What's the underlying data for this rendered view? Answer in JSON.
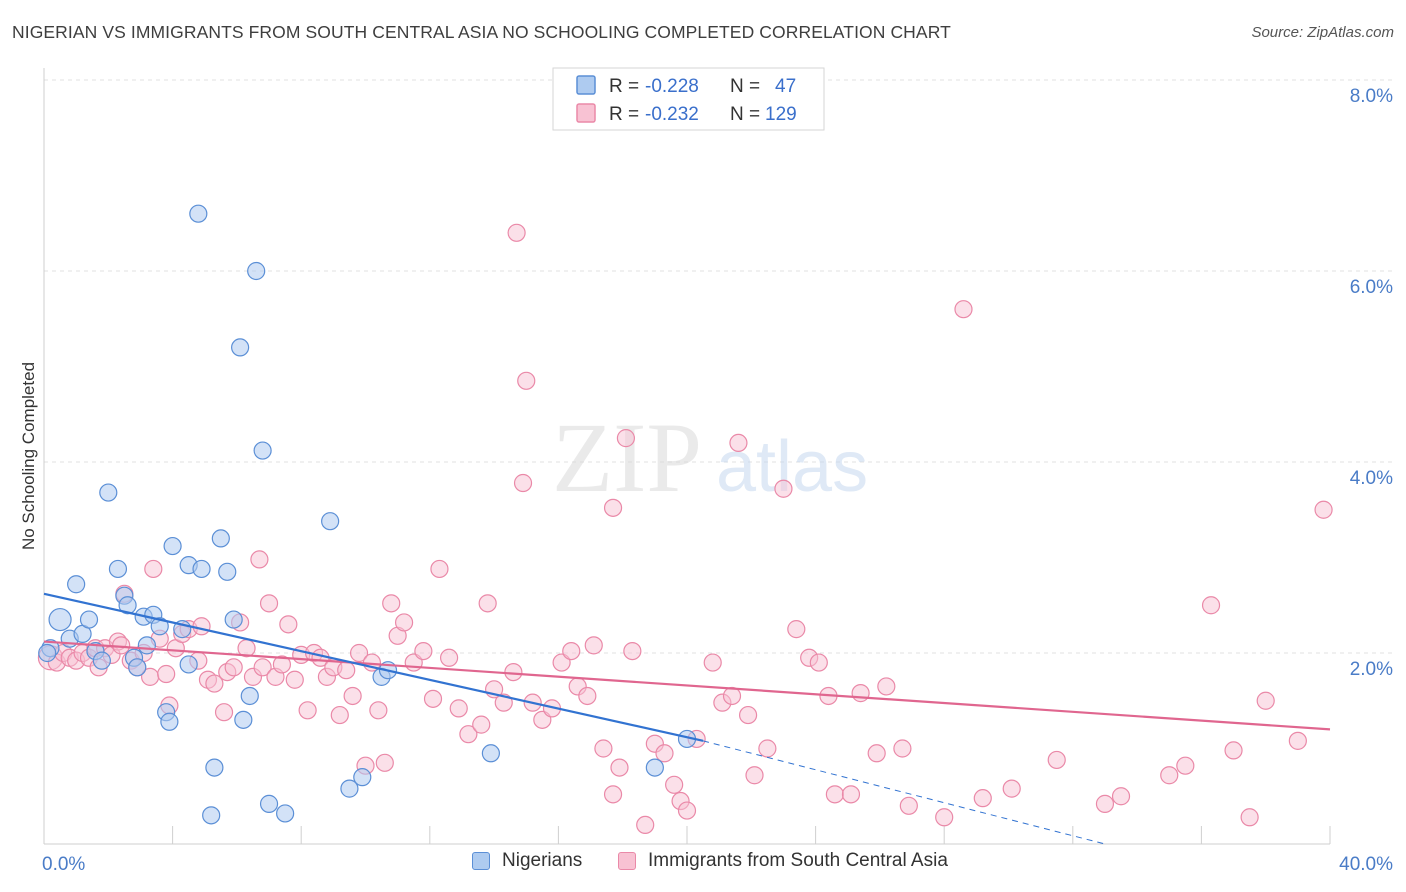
{
  "header": {
    "title": "NIGERIAN VS IMMIGRANTS FROM SOUTH CENTRAL ASIA NO SCHOOLING COMPLETED CORRELATION CHART",
    "source": "Source: ZipAtlas.com"
  },
  "watermark": {
    "zip": "ZIP",
    "atlas": "atlas"
  },
  "colors": {
    "blue": "#5b8fd6",
    "blue_fill": "#aecbf0",
    "blue_line": "#3273d1",
    "pink": "#ea89a8",
    "pink_fill": "#f8c2d3",
    "pink_line": "#e0668f",
    "axis_label": "#4a7cc7"
  },
  "legend_top": {
    "rows": [
      {
        "r_label": "R =",
        "r_value": "-0.228",
        "n_label": "N =",
        "n_value": "47"
      },
      {
        "r_label": "R =",
        "r_value": "-0.232",
        "n_label": "N =",
        "n_value": "129"
      }
    ]
  },
  "legend_bottom": {
    "items": [
      "Nigerians",
      "Immigrants from South Central Asia"
    ]
  },
  "chart_data": {
    "type": "scatter",
    "title": "NIGERIAN VS IMMIGRANTS FROM SOUTH CENTRAL ASIA NO SCHOOLING COMPLETED CORRELATION CHART",
    "xlabel": "",
    "ylabel": "No Schooling Completed",
    "xlim": [
      0,
      40
    ],
    "ylim": [
      0,
      8.0
    ],
    "x_tick_labels": [
      "0.0%",
      "40.0%"
    ],
    "y_tick_values": [
      2.0,
      4.0,
      6.0,
      8.0
    ],
    "y_tick_labels": [
      "2.0%",
      "4.0%",
      "6.0%",
      "8.0%"
    ],
    "grid": "horizontal-dashed",
    "legend_position": "top-center",
    "series": [
      {
        "name": "Nigerians",
        "r": -0.228,
        "n": 47,
        "trend": {
          "x": [
            0,
            20.5
          ],
          "y": [
            2.62,
            1.08
          ]
        },
        "trend_extension": {
          "x": [
            20.5,
            33.0
          ],
          "y": [
            1.08,
            0.0
          ]
        },
        "points": [
          [
            0.2,
            2.05
          ],
          [
            0.5,
            2.35
          ],
          [
            0.8,
            2.15
          ],
          [
            1.0,
            2.72
          ],
          [
            1.2,
            2.2
          ],
          [
            1.4,
            2.35
          ],
          [
            1.6,
            2.02
          ],
          [
            1.8,
            1.92
          ],
          [
            2.0,
            3.68
          ],
          [
            2.3,
            2.88
          ],
          [
            2.5,
            2.6
          ],
          [
            2.6,
            2.5
          ],
          [
            2.8,
            1.95
          ],
          [
            2.9,
            1.85
          ],
          [
            3.1,
            2.38
          ],
          [
            3.2,
            2.08
          ],
          [
            3.4,
            2.4
          ],
          [
            3.6,
            2.28
          ],
          [
            3.8,
            1.38
          ],
          [
            3.9,
            1.28
          ],
          [
            4.0,
            3.12
          ],
          [
            4.3,
            2.25
          ],
          [
            4.5,
            1.88
          ],
          [
            4.5,
            2.92
          ],
          [
            4.8,
            6.6
          ],
          [
            4.9,
            2.88
          ],
          [
            5.2,
            0.3
          ],
          [
            5.3,
            0.8
          ],
          [
            5.5,
            3.2
          ],
          [
            5.7,
            2.85
          ],
          [
            5.9,
            2.35
          ],
          [
            6.1,
            5.2
          ],
          [
            6.2,
            1.3
          ],
          [
            6.4,
            1.55
          ],
          [
            6.6,
            6.0
          ],
          [
            6.8,
            4.12
          ],
          [
            7.0,
            0.42
          ],
          [
            7.5,
            0.32
          ],
          [
            8.9,
            3.38
          ],
          [
            9.5,
            0.58
          ],
          [
            9.9,
            0.7
          ],
          [
            10.5,
            1.75
          ],
          [
            10.7,
            1.82
          ],
          [
            13.9,
            0.95
          ],
          [
            19.0,
            0.8
          ],
          [
            20.0,
            1.1
          ],
          [
            0.1,
            2.0
          ]
        ]
      },
      {
        "name": "Immigrants from South Central Asia",
        "r": -0.232,
        "n": 129,
        "trend": {
          "x": [
            0,
            40
          ],
          "y": [
            2.12,
            1.2
          ]
        },
        "points": [
          [
            0.2,
            1.95
          ],
          [
            0.4,
            1.9
          ],
          [
            0.6,
            2.0
          ],
          [
            0.8,
            1.95
          ],
          [
            1.0,
            1.92
          ],
          [
            1.2,
            2.0
          ],
          [
            1.4,
            1.95
          ],
          [
            1.6,
            2.05
          ],
          [
            1.7,
            1.85
          ],
          [
            1.9,
            2.05
          ],
          [
            2.1,
            1.98
          ],
          [
            2.3,
            2.12
          ],
          [
            2.4,
            2.08
          ],
          [
            2.5,
            2.62
          ],
          [
            2.7,
            1.92
          ],
          [
            2.9,
            1.85
          ],
          [
            3.1,
            2.0
          ],
          [
            3.3,
            1.75
          ],
          [
            3.4,
            2.88
          ],
          [
            3.6,
            2.15
          ],
          [
            3.8,
            1.78
          ],
          [
            3.9,
            1.45
          ],
          [
            4.1,
            2.05
          ],
          [
            4.3,
            2.2
          ],
          [
            4.5,
            2.25
          ],
          [
            4.8,
            1.92
          ],
          [
            4.9,
            2.28
          ],
          [
            5.1,
            1.72
          ],
          [
            5.3,
            1.68
          ],
          [
            5.6,
            1.38
          ],
          [
            5.7,
            1.8
          ],
          [
            5.9,
            1.85
          ],
          [
            6.1,
            2.32
          ],
          [
            6.3,
            2.05
          ],
          [
            6.5,
            1.75
          ],
          [
            6.7,
            2.98
          ],
          [
            6.8,
            1.85
          ],
          [
            7.0,
            2.52
          ],
          [
            7.2,
            1.75
          ],
          [
            7.4,
            1.88
          ],
          [
            7.6,
            2.3
          ],
          [
            7.8,
            1.72
          ],
          [
            8.0,
            1.98
          ],
          [
            8.2,
            1.4
          ],
          [
            8.4,
            2.0
          ],
          [
            8.6,
            1.95
          ],
          [
            8.8,
            1.75
          ],
          [
            9.0,
            1.85
          ],
          [
            9.2,
            1.35
          ],
          [
            9.4,
            1.82
          ],
          [
            9.6,
            1.55
          ],
          [
            9.8,
            2.0
          ],
          [
            10.0,
            0.82
          ],
          [
            10.2,
            1.9
          ],
          [
            10.4,
            1.4
          ],
          [
            10.6,
            0.85
          ],
          [
            10.8,
            2.52
          ],
          [
            11.0,
            2.18
          ],
          [
            11.2,
            2.32
          ],
          [
            11.5,
            1.9
          ],
          [
            11.8,
            2.02
          ],
          [
            12.1,
            1.52
          ],
          [
            12.3,
            2.88
          ],
          [
            12.6,
            1.95
          ],
          [
            12.9,
            1.42
          ],
          [
            13.2,
            1.15
          ],
          [
            13.6,
            1.25
          ],
          [
            13.8,
            2.52
          ],
          [
            14.0,
            1.62
          ],
          [
            14.3,
            1.48
          ],
          [
            14.6,
            1.8
          ],
          [
            14.9,
            3.78
          ],
          [
            15.2,
            1.48
          ],
          [
            15.5,
            1.3
          ],
          [
            15.8,
            1.42
          ],
          [
            16.1,
            1.9
          ],
          [
            16.4,
            2.02
          ],
          [
            16.6,
            1.65
          ],
          [
            16.9,
            1.55
          ],
          [
            17.1,
            2.08
          ],
          [
            17.4,
            1.0
          ],
          [
            17.7,
            0.52
          ],
          [
            17.9,
            0.8
          ],
          [
            18.1,
            4.25
          ],
          [
            18.3,
            2.02
          ],
          [
            18.7,
            0.2
          ],
          [
            19.0,
            1.05
          ],
          [
            19.3,
            0.95
          ],
          [
            19.6,
            0.62
          ],
          [
            19.8,
            0.45
          ],
          [
            20.0,
            0.35
          ],
          [
            20.3,
            1.1
          ],
          [
            20.8,
            1.9
          ],
          [
            21.1,
            1.48
          ],
          [
            21.4,
            1.55
          ],
          [
            21.6,
            4.2
          ],
          [
            21.9,
            1.35
          ],
          [
            22.1,
            0.72
          ],
          [
            22.5,
            1.0
          ],
          [
            23.0,
            3.72
          ],
          [
            23.4,
            2.25
          ],
          [
            23.8,
            1.95
          ],
          [
            24.1,
            1.9
          ],
          [
            24.4,
            1.55
          ],
          [
            24.6,
            0.52
          ],
          [
            25.1,
            0.52
          ],
          [
            25.4,
            1.58
          ],
          [
            25.9,
            0.95
          ],
          [
            26.2,
            1.65
          ],
          [
            26.7,
            1.0
          ],
          [
            26.9,
            0.4
          ],
          [
            28.0,
            0.28
          ],
          [
            28.6,
            5.6
          ],
          [
            29.2,
            0.48
          ],
          [
            30.1,
            0.58
          ],
          [
            31.5,
            0.88
          ],
          [
            33.0,
            0.42
          ],
          [
            33.5,
            0.5
          ],
          [
            35.0,
            0.72
          ],
          [
            35.5,
            0.82
          ],
          [
            36.3,
            2.5
          ],
          [
            37.0,
            0.98
          ],
          [
            37.5,
            0.28
          ],
          [
            38.0,
            1.5
          ],
          [
            39.0,
            1.08
          ],
          [
            39.8,
            3.5
          ],
          [
            14.7,
            6.4
          ],
          [
            15.0,
            4.85
          ],
          [
            17.7,
            3.52
          ]
        ]
      }
    ]
  }
}
